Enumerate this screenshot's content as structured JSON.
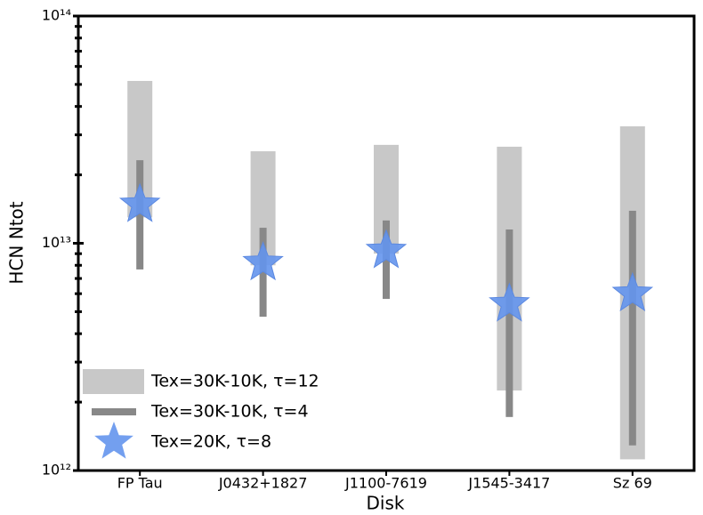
{
  "chart_data": {
    "type": "range",
    "xlabel": "Disk",
    "ylabel": "HCN Ntot",
    "categories": [
      "FP Tau",
      "J0432+1827",
      "J1100-7619",
      "J1545-3417",
      "Sz 69"
    ],
    "ylog": true,
    "ylim": [
      1000000000000.0,
      100000000000000.0
    ],
    "yticks": [
      {
        "value": 1000000000000.0,
        "label": "10¹²"
      },
      {
        "value": 10000000000000.0,
        "label": "10¹³"
      },
      {
        "value": 100000000000000.0,
        "label": "10¹⁴"
      }
    ],
    "yminorticks": [
      2000000000000.0,
      3000000000000.0,
      4000000000000.0,
      5000000000000.0,
      6000000000000.0,
      7000000000000.0,
      8000000000000.0,
      9000000000000.0,
      20000000000000.0,
      30000000000000.0,
      40000000000000.0,
      50000000000000.0,
      60000000000000.0,
      70000000000000.0,
      80000000000000.0,
      90000000000000.0
    ],
    "legend": "lower left",
    "series": [
      {
        "name": "Tex=30K-10K, τ=12",
        "color": "#c8c8c8",
        "marker": "band",
        "low": [
          13000000000000.0,
          8000000000000.0,
          9000000000000.0,
          2250000000000.0,
          1120000000000.0
        ],
        "high": [
          51800000000000.0,
          25400000000000.0,
          27100000000000.0,
          26600000000000.0,
          32700000000000.0
        ]
      },
      {
        "name": "Tex=30K-10K, τ=4",
        "color": "#888888",
        "marker": "line",
        "low": [
          7670000000000.0,
          4750000000000.0,
          5690000000000.0,
          1720000000000.0,
          1290000000000.0
        ],
        "high": [
          23200000000000.0,
          11700000000000.0,
          12600000000000.0,
          11500000000000.0,
          13900000000000.0
        ]
      },
      {
        "name": "Tex=20K, τ=8",
        "color": "#6495ed",
        "marker": "star",
        "values": [
          14800000000000.0,
          8200000000000.0,
          9270000000000.0,
          5400000000000.0,
          6000000000000.0
        ]
      }
    ]
  }
}
